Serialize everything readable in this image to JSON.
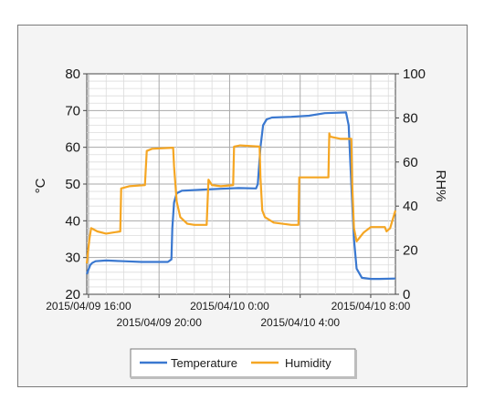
{
  "chart_data": {
    "type": "line",
    "title": "",
    "xlabel": "",
    "ylabel": "°C",
    "y2label": "RH%",
    "ylim": [
      20,
      80
    ],
    "y2lim": [
      0,
      100
    ],
    "yticks": [
      "20",
      "30",
      "40",
      "50",
      "60",
      "70",
      "80"
    ],
    "y2ticks": [
      "0",
      "20",
      "40",
      "60",
      "80",
      "100"
    ],
    "xticks": [
      {
        "h": 0,
        "label": "2015/04/09 16:00"
      },
      {
        "h": 4,
        "label": "2015/04/09 20:00"
      },
      {
        "h": 8,
        "label": "2015/04/10 0:00"
      },
      {
        "h": 12,
        "label": "2015/04/10 4:00"
      },
      {
        "h": 16,
        "label": "2015/04/10 8:00"
      }
    ],
    "xlim_hours": [
      -0.1,
      17.4
    ],
    "grid": true,
    "legend": "bottom-center",
    "series": [
      {
        "name": "Temperature",
        "axis": "left",
        "color": "#3a78d0",
        "points": [
          [
            -0.1,
            25.5
          ],
          [
            0.1,
            28
          ],
          [
            0.2,
            28.5
          ],
          [
            0.4,
            29
          ],
          [
            1.0,
            29.2
          ],
          [
            2.0,
            29.0
          ],
          [
            3.0,
            28.8
          ],
          [
            4.5,
            28.8
          ],
          [
            4.7,
            29.5
          ],
          [
            4.75,
            38
          ],
          [
            4.85,
            45
          ],
          [
            5.0,
            47.5
          ],
          [
            5.3,
            48.2
          ],
          [
            6.5,
            48.5
          ],
          [
            7.5,
            48.7
          ],
          [
            8.5,
            48.9
          ],
          [
            9.5,
            48.8
          ],
          [
            9.6,
            50
          ],
          [
            9.75,
            60
          ],
          [
            9.9,
            66
          ],
          [
            10.1,
            67.6
          ],
          [
            10.4,
            68.1
          ],
          [
            11.5,
            68.3
          ],
          [
            12.5,
            68.6
          ],
          [
            13.4,
            69.3
          ],
          [
            14.0,
            69.4
          ],
          [
            14.6,
            69.5
          ],
          [
            14.75,
            66
          ],
          [
            14.9,
            50
          ],
          [
            15.05,
            35
          ],
          [
            15.2,
            27
          ],
          [
            15.5,
            24.5
          ],
          [
            16.0,
            24.2
          ],
          [
            16.5,
            24.2
          ],
          [
            17.4,
            24.3
          ]
        ]
      },
      {
        "name": "Humidity",
        "axis": "right",
        "color": "#f5a623",
        "points": [
          [
            -0.1,
            14
          ],
          [
            0.05,
            25
          ],
          [
            0.15,
            30
          ],
          [
            0.5,
            28.5
          ],
          [
            1.0,
            27.5
          ],
          [
            1.8,
            28.5
          ],
          [
            1.85,
            48
          ],
          [
            2.3,
            49
          ],
          [
            3.2,
            49.5
          ],
          [
            3.3,
            65
          ],
          [
            3.6,
            66
          ],
          [
            4.8,
            66.5
          ],
          [
            4.85,
            58
          ],
          [
            5.0,
            42
          ],
          [
            5.2,
            35
          ],
          [
            5.6,
            32
          ],
          [
            6.0,
            31.5
          ],
          [
            6.7,
            31.5
          ],
          [
            6.8,
            52
          ],
          [
            7.0,
            49.5
          ],
          [
            7.5,
            49
          ],
          [
            8.2,
            49.5
          ],
          [
            8.25,
            67
          ],
          [
            8.6,
            67.5
          ],
          [
            9.7,
            67
          ],
          [
            9.75,
            53
          ],
          [
            9.85,
            38
          ],
          [
            10.0,
            35
          ],
          [
            10.5,
            32.5
          ],
          [
            11.5,
            31.5
          ],
          [
            11.9,
            31.5
          ],
          [
            11.95,
            53
          ],
          [
            12.5,
            53
          ],
          [
            13.6,
            53
          ],
          [
            13.65,
            73
          ],
          [
            13.7,
            71.5
          ],
          [
            14.3,
            70.5
          ],
          [
            14.9,
            70.5
          ],
          [
            14.95,
            50
          ],
          [
            15.05,
            30
          ],
          [
            15.2,
            24
          ],
          [
            15.6,
            28
          ],
          [
            16.0,
            30.5
          ],
          [
            16.8,
            30.5
          ],
          [
            16.9,
            28.5
          ],
          [
            17.1,
            30
          ],
          [
            17.4,
            38
          ]
        ]
      }
    ]
  }
}
